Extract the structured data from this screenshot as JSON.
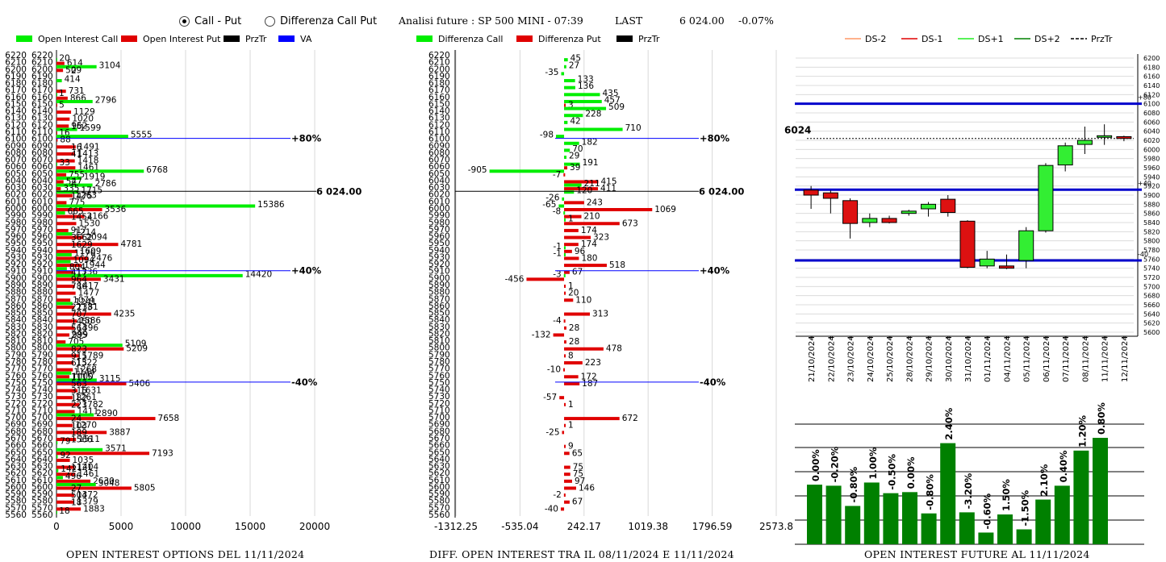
{
  "header": {
    "radio_call_put": "Call - Put",
    "radio_diff": "Differenza Call Put",
    "analysis_label": "Analisi future : SP 500 MINI - 07:39",
    "last_label": "LAST",
    "last_value": "6 024.00",
    "change": "-0.07%"
  },
  "footers": {
    "left": "OPEN INTEREST OPTIONS DEL 11/11/2024",
    "middle": "DIFF. OPEN INTEREST TRA IL 08/11/2024 E 11/11/2024",
    "right": "OPEN INTEREST FUTURE AL 11/11/2024"
  },
  "colors": {
    "call": "#00ee00",
    "put": "#e00000",
    "przTr": "#000000",
    "va": "#0000ff",
    "bar": "#008000"
  },
  "chart_data": [
    {
      "id": "oi",
      "type": "bar",
      "legend": [
        "Open Interest Call",
        "Open Interest Put",
        "PrzTr",
        "VA"
      ],
      "strikes": [
        6220,
        6210,
        6200,
        6190,
        6180,
        6170,
        6160,
        6150,
        6140,
        6130,
        6120,
        6110,
        6100,
        6090,
        6080,
        6070,
        6060,
        6050,
        6040,
        6030,
        6020,
        6010,
        6000,
        5990,
        5980,
        5970,
        5960,
        5950,
        5940,
        5930,
        5920,
        5910,
        5900,
        5890,
        5880,
        5870,
        5860,
        5850,
        5840,
        5830,
        5820,
        5810,
        5800,
        5790,
        5780,
        5770,
        5760,
        5750,
        5740,
        5730,
        5720,
        5710,
        5700,
        5690,
        5680,
        5670,
        5660,
        5650,
        5640,
        5630,
        5620,
        5610,
        5600,
        5590,
        5580,
        5570,
        5560
      ],
      "call": [
        null,
        20,
        3104,
        null,
        414,
        null,
        1,
        2796,
        null,
        null,
        null,
        1599,
        5555,
        null,
        null,
        null,
        33,
        6768,
        1919,
        2786,
        1715,
        null,
        15386,
        665,
        null,
        null,
        1214,
        null,
        null,
        1176,
        1094,
        804,
        14420,
        null,
        null,
        null,
        1241,
        null,
        null,
        null,
        null,
        null,
        5109,
        null,
        null,
        null,
        1144,
        3115,
        null,
        null,
        null,
        null,
        2890,
        null,
        null,
        null,
        79,
        3571,
        92,
        null,
        142,
        496,
        3048,
        null,
        null,
        null,
        18
      ],
      "put": [
        null,
        614,
        509,
        null,
        null,
        731,
        866,
        5,
        1129,
        1020,
        952,
        16,
        88,
        1491,
        1413,
        1418,
        1461,
        755,
        547,
        335,
        1263,
        775,
        3536,
        2166,
        1530,
        917,
        2094,
        4781,
        1609,
        2476,
        1944,
        1336,
        3431,
        1417,
        1477,
        1074,
        1381,
        4235,
        1586,
        1396,
        999,
        705,
        5209,
        1789,
        1322,
        1268,
        1000,
        5406,
        1631,
        1261,
        1782,
        1411,
        7658,
        1270,
        3887,
        1511,
        null,
        7193,
        1035,
        1404,
        1461,
        2630,
        5805,
        1372,
        1379,
        1883,
        null
      ],
      "call_other": [
        {
          "strike": 6190,
          "v": "2"
        },
        {
          "strike": 6110,
          "v": "16"
        },
        {
          "strike": 6080,
          "v": "16"
        },
        {
          "strike": 6070,
          "v": "41"
        },
        {
          "strike": 6030,
          "v": "2"
        },
        {
          "strike": 6010,
          "v": "1475"
        },
        {
          "strike": 5980,
          "v": "1454"
        },
        {
          "strike": 5950,
          "v": "3662"
        },
        {
          "strike": 5940,
          "v": "1629"
        },
        {
          "strike": 5900,
          "v": "417"
        },
        {
          "strike": 5890,
          "v": "964"
        },
        {
          "strike": 5880,
          "v": "786"
        },
        {
          "strike": 5850,
          "v": "2213"
        },
        {
          "strike": 5840,
          "v": "707"
        },
        {
          "strike": 5830,
          "v": "1450"
        },
        {
          "strike": 5820,
          "v": "564"
        },
        {
          "strike": 5810,
          "v": "285"
        },
        {
          "strike": 5790,
          "v": "823"
        },
        {
          "strike": 5780,
          "v": "915"
        },
        {
          "strike": 5770,
          "v": "615"
        },
        {
          "strike": 5750,
          "v": "1115"
        },
        {
          "strike": 5740,
          "v": "563"
        },
        {
          "strike": 5730,
          "v": "315"
        },
        {
          "strike": 5720,
          "v": "182"
        },
        {
          "strike": 5710,
          "v": "223"
        },
        {
          "strike": 5690,
          "v": "24"
        },
        {
          "strike": 5680,
          "v": "103"
        },
        {
          "strike": 5670,
          "v": "189"
        },
        {
          "strike": 5660,
          "v": "1566"
        },
        {
          "strike": 5620,
          "v": "1121"
        },
        {
          "strike": 5590,
          "v": "27"
        },
        {
          "strike": 5580,
          "v": "504"
        },
        {
          "strike": 5570,
          "v": "18"
        }
      ],
      "x_ticks": [
        "0",
        "5000",
        "10000",
        "15000",
        "20000"
      ],
      "x_range": [
        0,
        20000
      ],
      "price_line": {
        "strike": 6024,
        "label": "6 024.00"
      },
      "va_lines": [
        {
          "strike": 6100,
          "label": "+80%"
        },
        {
          "strike": 5910,
          "label": "+40%"
        },
        {
          "strike": 5750,
          "label": "-40%"
        }
      ]
    },
    {
      "id": "diff",
      "type": "bar",
      "legend": [
        "Differenza Call",
        "Differenza Put",
        "PrzTr"
      ],
      "strikes": [
        6220,
        6210,
        6200,
        6190,
        6180,
        6170,
        6160,
        6150,
        6140,
        6130,
        6120,
        6110,
        6100,
        6090,
        6080,
        6070,
        6060,
        6050,
        6040,
        6030,
        6020,
        6010,
        6000,
        5990,
        5980,
        5970,
        5960,
        5950,
        5940,
        5930,
        5920,
        5910,
        5900,
        5890,
        5880,
        5870,
        5860,
        5850,
        5840,
        5830,
        5820,
        5810,
        5800,
        5790,
        5780,
        5770,
        5760,
        5750,
        5740,
        5730,
        5720,
        5710,
        5700,
        5690,
        5680,
        5670,
        5660,
        5650,
        5640,
        5630,
        5620,
        5610,
        5600,
        5590,
        5580,
        5570,
        5560
      ],
      "call": [
        null,
        45,
        27,
        -35,
        133,
        136,
        435,
        457,
        509,
        228,
        42,
        710,
        -98,
        182,
        70,
        29,
        191,
        -905,
        null,
        211,
        120,
        -26,
        -65,
        -8,
        1,
        null,
        null,
        null,
        -1,
        -1,
        null,
        null,
        -3,
        null,
        null,
        null,
        null,
        null,
        null,
        null,
        null,
        null,
        null,
        null,
        null,
        null,
        null,
        null,
        null,
        null,
        null,
        null,
        null,
        null,
        null,
        null,
        null,
        null,
        null,
        null,
        null,
        null,
        null,
        null,
        null,
        null,
        null
      ],
      "put": [
        null,
        null,
        null,
        null,
        null,
        null,
        null,
        3,
        null,
        null,
        null,
        null,
        null,
        null,
        null,
        null,
        39,
        -7,
        415,
        411,
        null,
        243,
        1069,
        210,
        673,
        174,
        323,
        174,
        96,
        180,
        518,
        67,
        -456,
        1,
        20,
        110,
        null,
        313,
        -4,
        28,
        -132,
        28,
        478,
        8,
        223,
        -10,
        172,
        187,
        null,
        -57,
        1,
        null,
        672,
        1,
        -25,
        null,
        9,
        65,
        null,
        75,
        75,
        97,
        146,
        -2,
        67,
        -40,
        null
      ],
      "x_ticks": [
        "-1312.25",
        "-535.04",
        "242.17",
        "1019.38",
        "1796.59",
        "2573.8"
      ],
      "x_range": [
        -1312.25,
        2573.8
      ],
      "price_line": {
        "strike": 6024,
        "label": "6 024.00"
      },
      "va_lines": [
        {
          "strike": 6100,
          "label": "+80%"
        },
        {
          "strike": 5910,
          "label": "+40%"
        },
        {
          "strike": 5750,
          "label": "-40%"
        }
      ]
    },
    {
      "id": "candles",
      "type": "candlestick",
      "legend": [
        "DS-2",
        "DS-1",
        "DS+1",
        "DS+2",
        "PrzTr"
      ],
      "dates": [
        "21/10/2024",
        "22/10/2024",
        "23/10/2024",
        "24/10/2024",
        "25/10/2024",
        "28/10/2024",
        "29/10/2024",
        "30/10/2024",
        "31/10/2024",
        "01/11/2024",
        "04/11/2024",
        "05/11/2024",
        "06/11/2024",
        "07/11/2024",
        "08/11/2024",
        "11/11/2024",
        "12/11/2024"
      ],
      "open": [
        5911,
        5905,
        5888,
        5840,
        5849,
        5860,
        5870,
        5891,
        5843,
        5745,
        5745,
        5757,
        5822,
        5966,
        6011,
        6028,
        6028
      ],
      "close": [
        5900,
        5893,
        5838,
        5849,
        5840,
        5865,
        5880,
        5862,
        5742,
        5760,
        5740,
        5822,
        5965,
        6008,
        6020,
        6030,
        6024
      ],
      "high": [
        5920,
        5910,
        5893,
        5860,
        5855,
        5868,
        5885,
        5900,
        5845,
        5778,
        5770,
        5830,
        5970,
        6015,
        6050,
        6055,
        6030
      ],
      "low": [
        5870,
        5860,
        5805,
        5830,
        5838,
        5855,
        5853,
        5853,
        5740,
        5740,
        5738,
        5740,
        5818,
        5952,
        5990,
        6010,
        6018
      ],
      "y_ticks": [
        6200,
        6180,
        6160,
        6140,
        6120,
        6100,
        6080,
        6060,
        6040,
        6020,
        6000,
        5980,
        5960,
        5940,
        5920,
        5900,
        5880,
        5860,
        5840,
        5820,
        5800,
        5780,
        5760,
        5740,
        5720,
        5700,
        5680,
        5660,
        5640,
        5620,
        5600
      ],
      "y_range": [
        5600,
        6200
      ],
      "levels": [
        {
          "value": 6100,
          "label": "+80"
        },
        {
          "value": 5912,
          "label": "+40"
        },
        {
          "value": 5757,
          "label": "-40"
        }
      ],
      "price_label": "6024",
      "price": 6024
    },
    {
      "id": "future_oi",
      "type": "bar",
      "values": [
        0.0,
        -0.2,
        -0.8,
        1.0,
        -0.5,
        0.0,
        -0.8,
        2.4,
        -3.2,
        -0.6,
        1.5,
        -1.5,
        2.1,
        0.4,
        1.2,
        0.8
      ],
      "labels": [
        "0.00%",
        "-0.20%",
        "-0.80%",
        "1.00%",
        "-0.50%",
        "0.00%",
        "-0.80%",
        "2.40%",
        "-3.20%",
        "-0.60%",
        "1.50%",
        "-1.50%",
        "2.10%",
        "0.40%",
        "1.20%",
        "0.80%"
      ],
      "heights": [
        0.56,
        0.55,
        0.36,
        0.58,
        0.48,
        0.49,
        0.29,
        0.95,
        0.3,
        0.11,
        0.28,
        0.14,
        0.42,
        0.55,
        0.88,
        1.0
      ]
    }
  ]
}
